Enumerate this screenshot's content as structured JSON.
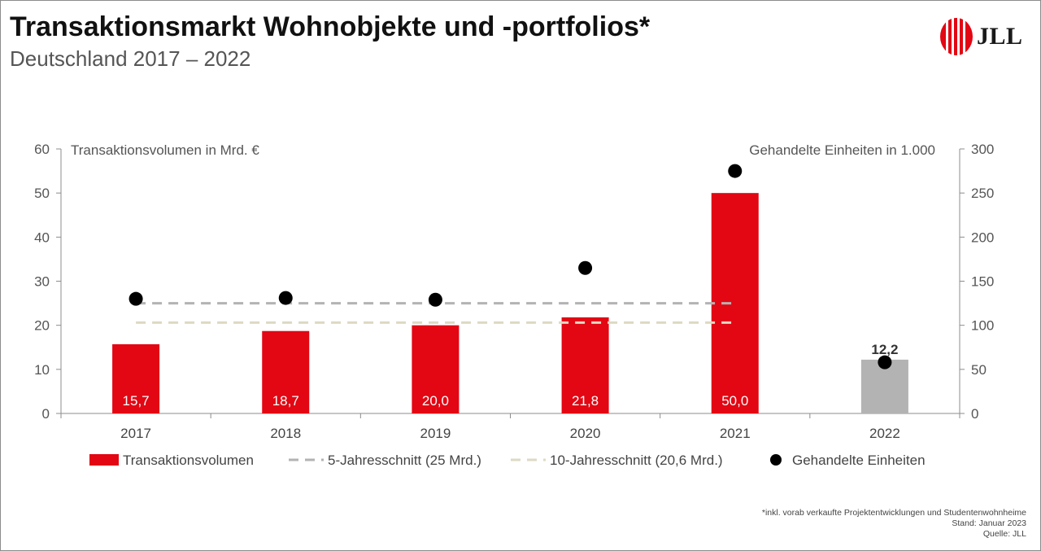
{
  "header": {
    "title": "Transaktionsmarkt Wohnobjekte und -portfolios*",
    "subtitle": "Deutschland 2017 – 2022"
  },
  "logo": {
    "text": "JLL",
    "icon": "jll-stripes-logo",
    "color": "#e30613"
  },
  "footnote": {
    "line1": "*inkl. vorab verkaufte Projektentwicklungen und Studentenwohnheime",
    "line2": "Stand: Januar 2023",
    "line3": "Quelle: JLL"
  },
  "chart_data": {
    "type": "bar",
    "categories": [
      "2017",
      "2018",
      "2019",
      "2020",
      "2021",
      "2022"
    ],
    "y_left": {
      "label": "Transaktionsvolumen in Mrd. €",
      "range": [
        0,
        60
      ],
      "ticks": [
        "0",
        "10",
        "20",
        "30",
        "40",
        "50",
        "60"
      ]
    },
    "y_right": {
      "label": "Gehandelte Einheiten in 1.000",
      "range": [
        0,
        300
      ],
      "ticks": [
        "0",
        "50",
        "100",
        "150",
        "200",
        "250",
        "300"
      ]
    },
    "grid": false,
    "series": [
      {
        "name": "Transaktionsvolumen",
        "type": "bar",
        "axis": "left",
        "values": [
          15.7,
          18.7,
          20.0,
          21.8,
          50.0,
          12.2
        ],
        "labels": [
          "15,7",
          "18,7",
          "20,0",
          "21,8",
          "50,0",
          "12,2"
        ],
        "colors": [
          "#e30613",
          "#e30613",
          "#e30613",
          "#e30613",
          "#e30613",
          "#b3b3b3"
        ]
      },
      {
        "name": "5-Jahresschnitt (25 Mrd.)",
        "type": "reference-line",
        "axis": "left",
        "value": 25,
        "span": [
          "2017",
          "2021"
        ],
        "color": "#b3b3b3"
      },
      {
        "name": "10-Jahresschnitt (20,6 Mrd.)",
        "type": "reference-line",
        "axis": "left",
        "value": 20.6,
        "span": [
          "2017",
          "2021"
        ],
        "color": "#ddd9c3"
      },
      {
        "name": "Gehandelte Einheiten",
        "type": "scatter",
        "axis": "right",
        "values": [
          130,
          131,
          129,
          165,
          275,
          58
        ],
        "color": "#000000"
      }
    ],
    "legend": "bottom"
  }
}
